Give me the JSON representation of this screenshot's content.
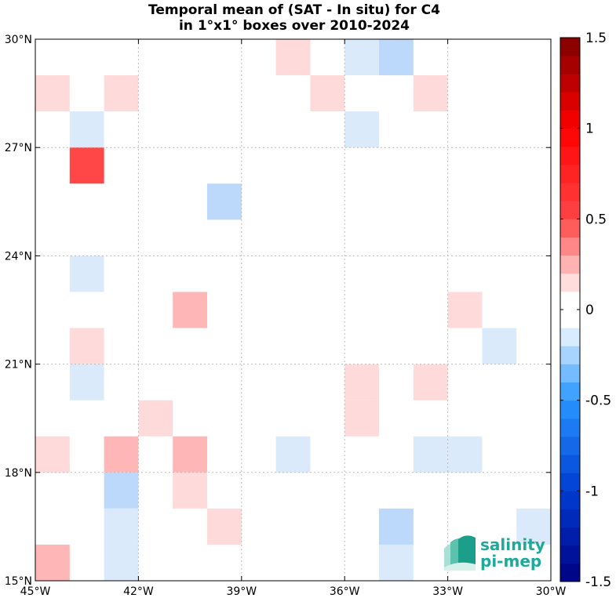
{
  "chart_data": {
    "type": "heatmap",
    "title": [
      "Temporal mean of (SAT - In situ) for C4",
      "in 1°x1° boxes over 2010-2024"
    ],
    "xlabel": "",
    "ylabel": "",
    "x_range": [
      -45,
      -30
    ],
    "y_range": [
      15,
      30
    ],
    "x_ticks": [
      -45,
      -42,
      -39,
      -36,
      -33,
      -30
    ],
    "x_tick_labels": [
      "45°W",
      "42°W",
      "39°W",
      "36°W",
      "33°W",
      "30°W"
    ],
    "y_ticks": [
      15,
      18,
      21,
      24,
      27,
      30
    ],
    "y_tick_labels": [
      "15°N",
      "18°N",
      "21°N",
      "24°N",
      "27°N",
      "30°N"
    ],
    "grid": true,
    "cell_size_deg": 1,
    "colorbar": {
      "range": [
        -1.5,
        1.5
      ],
      "levels": 30,
      "ticks": [
        1.5,
        1,
        0.5,
        0,
        -0.5,
        -1,
        -1.5
      ],
      "tick_labels": [
        "1.5",
        "1",
        "0.5",
        "0",
        "-0.5",
        "-1",
        "-1.5"
      ],
      "placement": "right"
    },
    "cells": [
      {
        "lon": -37.5,
        "lat": 29.5,
        "value": 0.15
      },
      {
        "lon": -35.5,
        "lat": 29.5,
        "value": -0.15
      },
      {
        "lon": -34.5,
        "lat": 29.5,
        "value": -0.3
      },
      {
        "lon": -44.5,
        "lat": 28.5,
        "value": 0.15
      },
      {
        "lon": -42.5,
        "lat": 28.5,
        "value": 0.15
      },
      {
        "lon": -36.5,
        "lat": 28.5,
        "value": 0.15
      },
      {
        "lon": -33.5,
        "lat": 28.5,
        "value": 0.15
      },
      {
        "lon": -43.5,
        "lat": 27.5,
        "value": -0.15
      },
      {
        "lon": -35.5,
        "lat": 27.5,
        "value": -0.15
      },
      {
        "lon": -43.5,
        "lat": 26.5,
        "value": 0.65
      },
      {
        "lon": -39.5,
        "lat": 25.5,
        "value": -0.3
      },
      {
        "lon": -43.5,
        "lat": 23.5,
        "value": -0.15
      },
      {
        "lon": -40.5,
        "lat": 22.5,
        "value": 0.3
      },
      {
        "lon": -32.5,
        "lat": 22.5,
        "value": 0.15
      },
      {
        "lon": -43.5,
        "lat": 21.5,
        "value": 0.15
      },
      {
        "lon": -31.5,
        "lat": 21.5,
        "value": -0.15
      },
      {
        "lon": -43.5,
        "lat": 20.5,
        "value": -0.15
      },
      {
        "lon": -35.5,
        "lat": 20.5,
        "value": 0.15
      },
      {
        "lon": -33.5,
        "lat": 20.5,
        "value": 0.15
      },
      {
        "lon": -41.5,
        "lat": 19.5,
        "value": 0.15
      },
      {
        "lon": -35.5,
        "lat": 19.5,
        "value": 0.15
      },
      {
        "lon": -44.5,
        "lat": 18.5,
        "value": 0.15
      },
      {
        "lon": -42.5,
        "lat": 18.5,
        "value": 0.3
      },
      {
        "lon": -40.5,
        "lat": 18.5,
        "value": 0.3
      },
      {
        "lon": -37.5,
        "lat": 18.5,
        "value": -0.15
      },
      {
        "lon": -33.5,
        "lat": 18.5,
        "value": -0.15
      },
      {
        "lon": -32.5,
        "lat": 18.5,
        "value": -0.15
      },
      {
        "lon": -42.5,
        "lat": 17.5,
        "value": -0.3
      },
      {
        "lon": -40.5,
        "lat": 17.5,
        "value": 0.15
      },
      {
        "lon": -42.5,
        "lat": 16.5,
        "value": -0.15
      },
      {
        "lon": -39.5,
        "lat": 16.5,
        "value": 0.15
      },
      {
        "lon": -34.5,
        "lat": 16.5,
        "value": -0.3
      },
      {
        "lon": -30.5,
        "lat": 16.5,
        "value": -0.15
      },
      {
        "lon": -44.5,
        "lat": 15.5,
        "value": 0.3
      },
      {
        "lon": -42.5,
        "lat": 15.5,
        "value": -0.15
      },
      {
        "lon": -34.5,
        "lat": 15.5,
        "value": -0.15
      }
    ]
  },
  "logo": {
    "line1": "salinity",
    "line2": "pi-mep",
    "color": "#1fa99a"
  }
}
